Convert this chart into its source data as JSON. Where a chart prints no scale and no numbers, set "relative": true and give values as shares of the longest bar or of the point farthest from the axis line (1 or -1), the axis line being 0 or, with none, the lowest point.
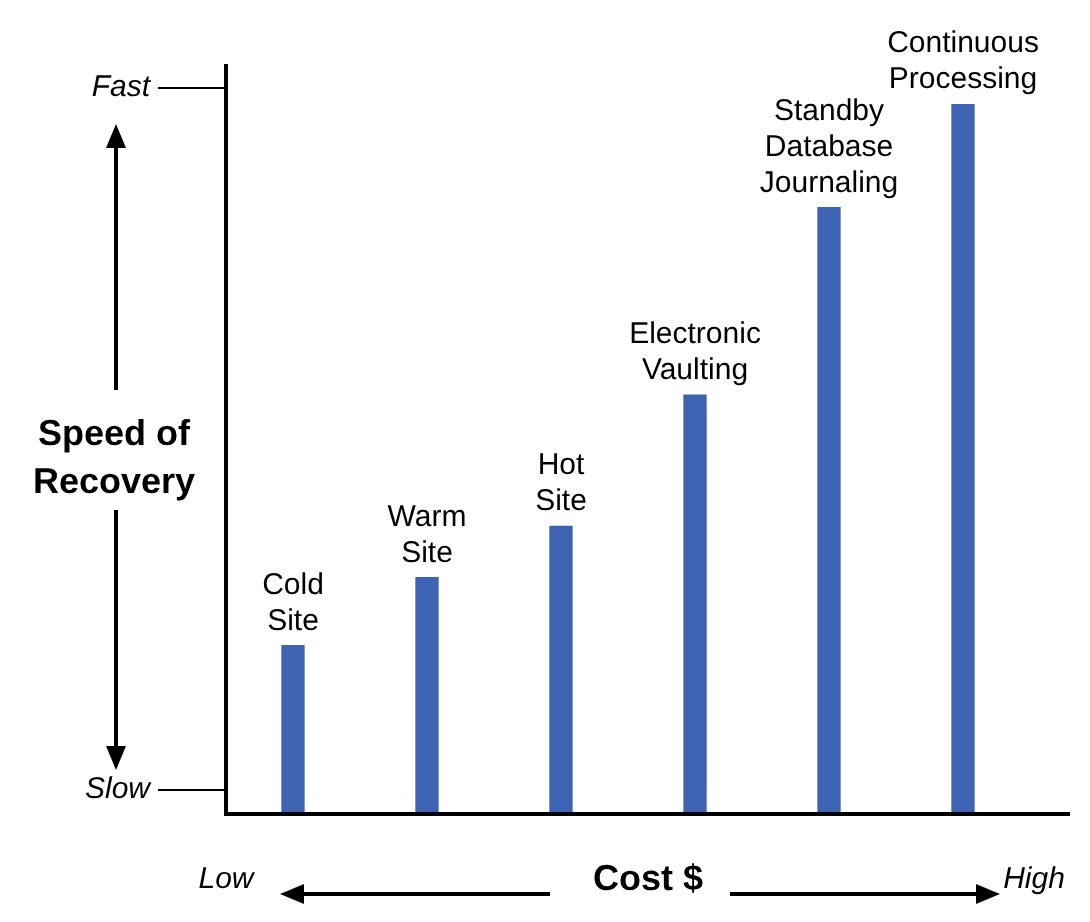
{
  "chart_data": {
    "type": "bar",
    "relative": true,
    "xlabel": "Cost $",
    "ylabel": "Speed of Recovery",
    "categories": [
      "Cold Site",
      "Warm Site",
      "Hot Site",
      "Electronic Vaulting",
      "Standby Database Journaling",
      "Continuous Processing"
    ],
    "values": [
      0.237,
      0.333,
      0.405,
      0.59,
      0.854,
      1
    ],
    "color": "#3d63b2",
    "annotations": [
      "Fast",
      "Slow",
      "Low",
      "High"
    ],
    "grid": false,
    "legend": false
  }
}
